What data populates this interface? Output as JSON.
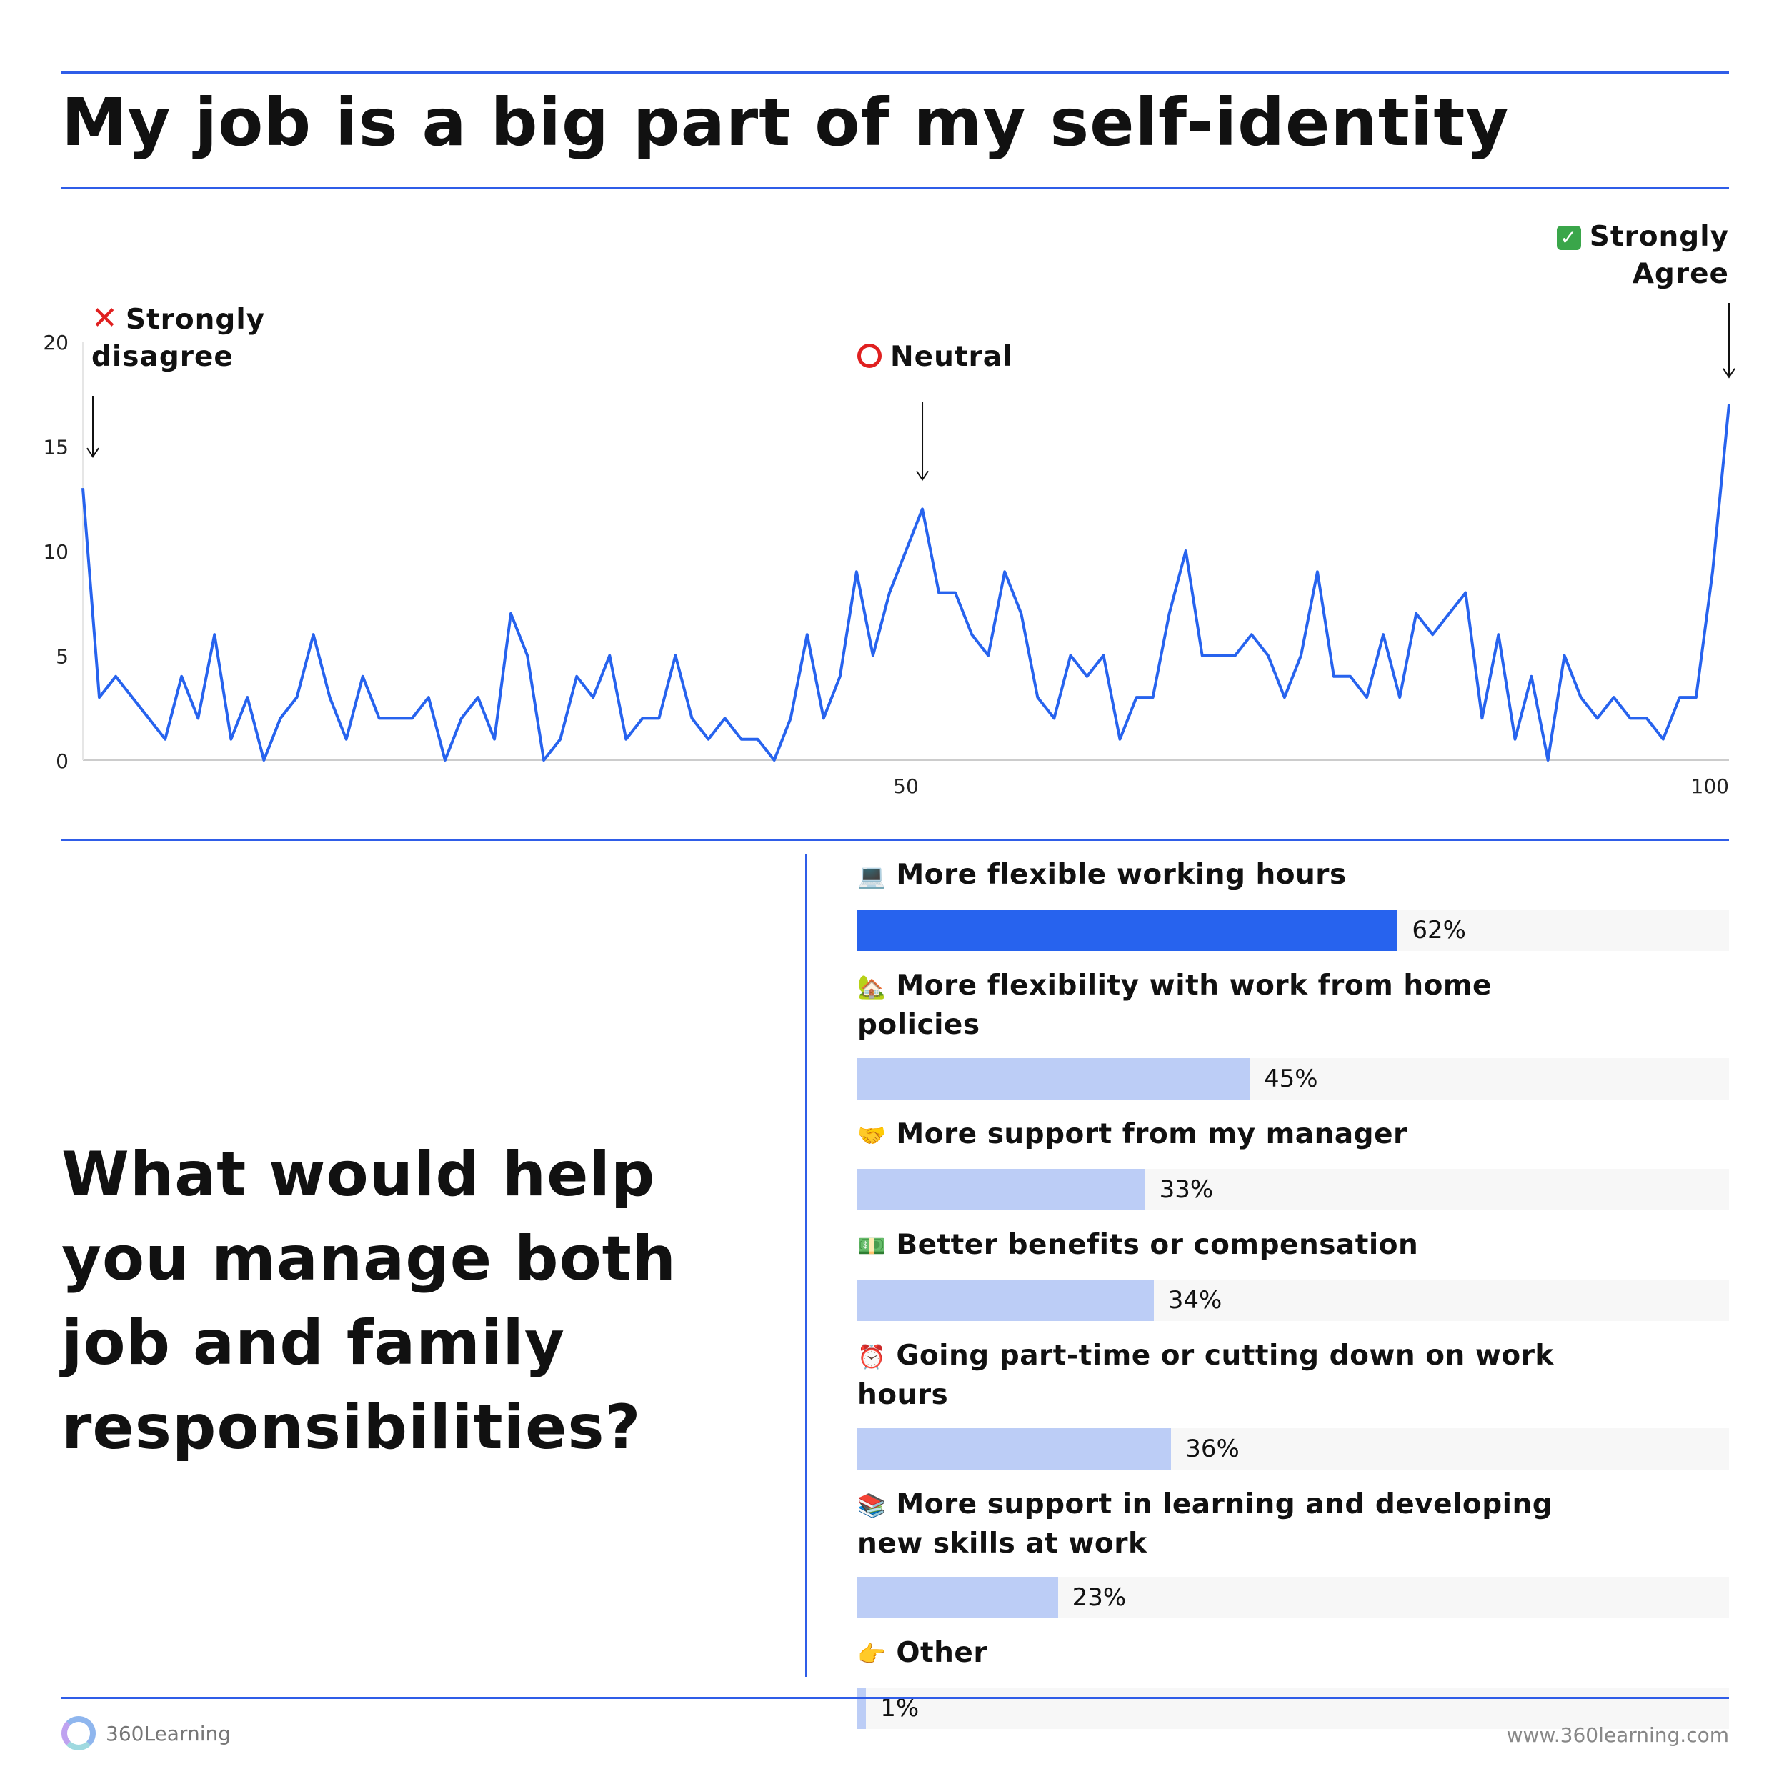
{
  "title": "My job is a big part of my self-identity",
  "annotations": {
    "left": {
      "line1": "Strongly",
      "line2": "disagree"
    },
    "middle": "Neutral",
    "right": {
      "line1": "Strongly",
      "line2": "Agree"
    }
  },
  "question": "What would help you manage both job and family responsibilities?",
  "colors": {
    "accent": "#2f5de8",
    "line": "#2763ee",
    "bar_top": "#2763ee",
    "bar_other": "#bccdf6",
    "track": "#f7f7f7",
    "mark_red": "#e02020",
    "check_green": "#3aa64a"
  },
  "chart_data": [
    {
      "type": "line",
      "xlim": [
        0,
        100
      ],
      "ylim": [
        0,
        20
      ],
      "yticks": [
        0,
        5,
        10,
        15,
        20
      ],
      "xticks": [
        50,
        100
      ],
      "grid": false,
      "x": [
        0,
        1,
        2,
        3,
        4,
        5,
        6,
        7,
        8,
        9,
        10,
        11,
        12,
        13,
        14,
        15,
        16,
        17,
        18,
        19,
        20,
        21,
        22,
        23,
        24,
        25,
        26,
        27,
        28,
        29,
        30,
        31,
        32,
        33,
        34,
        35,
        36,
        37,
        38,
        39,
        40,
        41,
        42,
        43,
        44,
        45,
        46,
        47,
        48,
        49,
        50,
        51,
        52,
        53,
        54,
        55,
        56,
        57,
        58,
        59,
        60,
        61,
        62,
        63,
        64,
        65,
        66,
        67,
        68,
        69,
        70,
        71,
        72,
        73,
        74,
        75,
        76,
        77,
        78,
        79,
        80,
        81,
        82,
        83,
        84,
        85,
        86,
        87,
        88,
        89,
        90,
        91,
        92,
        93,
        94,
        95,
        96,
        97,
        98,
        99,
        100
      ],
      "values": [
        13,
        3,
        4,
        3,
        2,
        1,
        4,
        2,
        6,
        1,
        3,
        0,
        2,
        3,
        6,
        3,
        1,
        4,
        2,
        2,
        2,
        3,
        0,
        2,
        3,
        1,
        7,
        5,
        0,
        1,
        4,
        3,
        5,
        1,
        2,
        2,
        5,
        2,
        1,
        2,
        1,
        1,
        0,
        2,
        6,
        2,
        4,
        9,
        5,
        8,
        10,
        12,
        8,
        8,
        6,
        5,
        9,
        7,
        3,
        2,
        5,
        4,
        5,
        1,
        3,
        3,
        7,
        10,
        5,
        5,
        5,
        6,
        5,
        3,
        5,
        9,
        4,
        4,
        3,
        6,
        3,
        7,
        6,
        7,
        8,
        2,
        6,
        1,
        4,
        0,
        5,
        3,
        2,
        3,
        2,
        2,
        1,
        3,
        3,
        9,
        17
      ]
    },
    {
      "type": "bar",
      "orientation": "horizontal",
      "xlim": [
        0,
        100
      ],
      "categories": [
        "More flexible working hours",
        "More flexibility with work from home policies",
        "More support from my manager",
        "Better benefits or compensation",
        "Going part-time or cutting down on work hours",
        "More support in learning and developing new skills at work",
        "Other"
      ],
      "icons": [
        "laptop-icon",
        "house-icon",
        "handshake-icon",
        "money-icon",
        "alarm-clock-icon",
        "books-icon",
        "pointing-hand-icon"
      ],
      "glyphs": [
        "💻",
        "🏡",
        "🤝",
        "💵",
        "⏰",
        "📚",
        "👉"
      ],
      "values": [
        62,
        45,
        33,
        34,
        36,
        23,
        1
      ],
      "labels": [
        "62%",
        "45%",
        "33%",
        "34%",
        "36%",
        "23%",
        "1%"
      ]
    }
  ],
  "footer": {
    "brand": "360Learning",
    "url": "www.360learning.com"
  }
}
